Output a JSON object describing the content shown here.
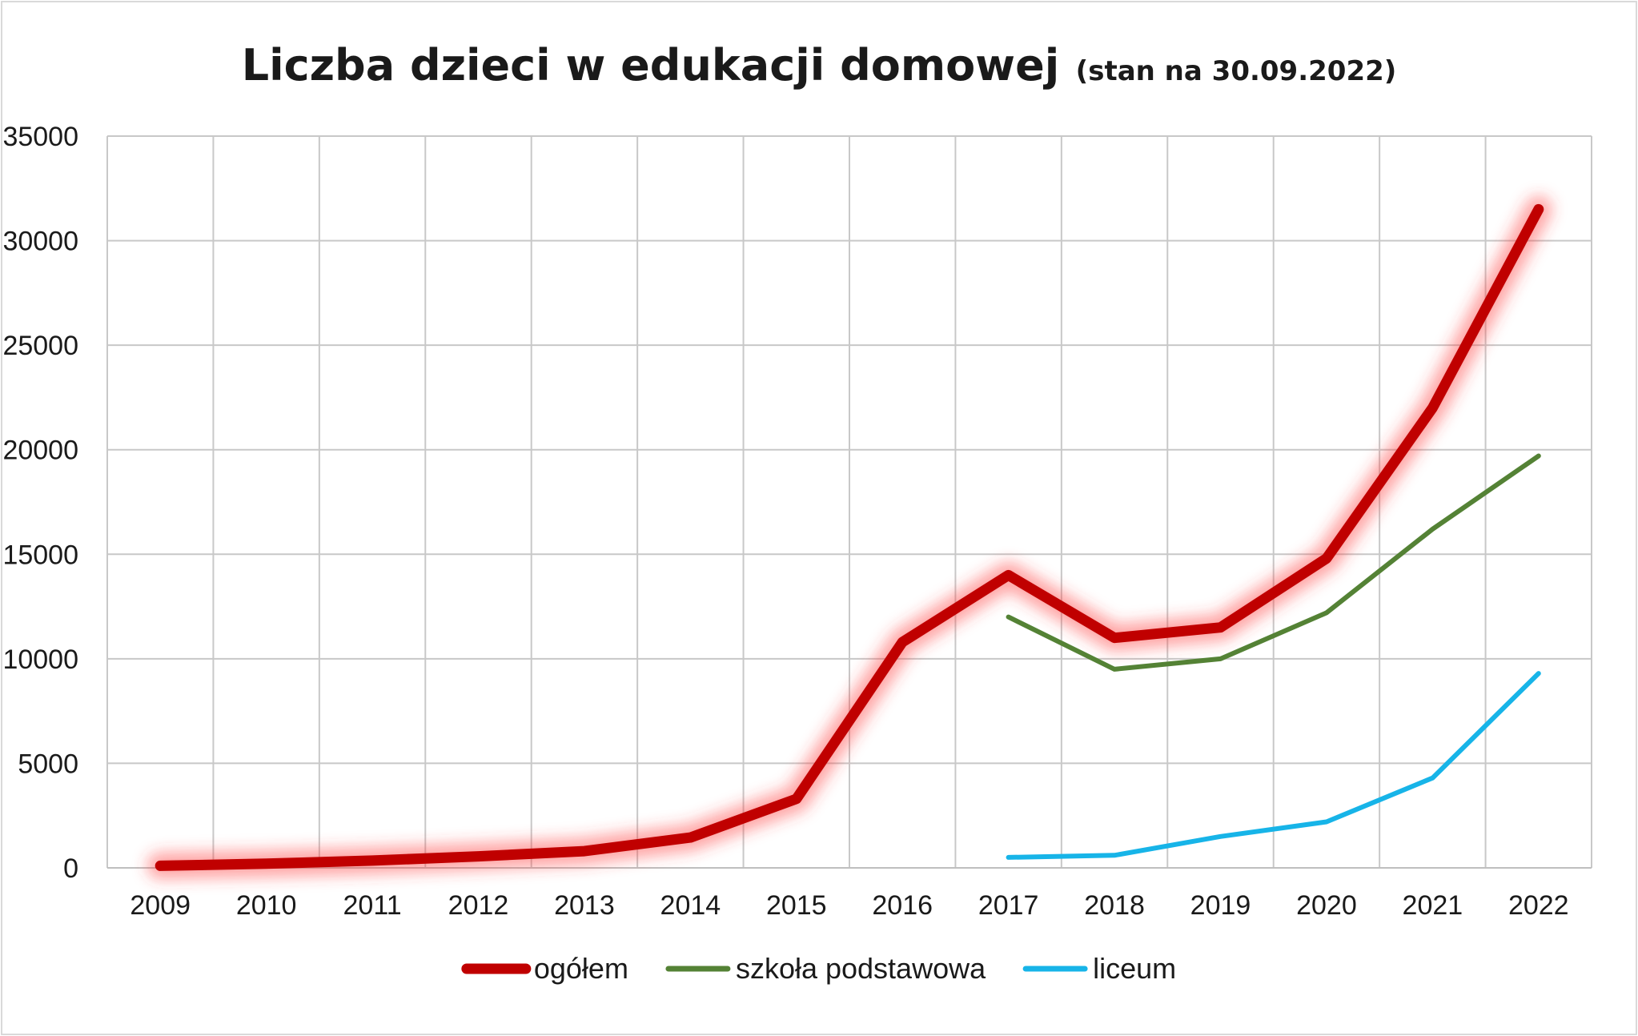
{
  "chart_data": {
    "type": "line",
    "title": "Liczba dzieci w edukacji domowej",
    "subtitle": "(stan na 30.09.2022)",
    "xlabel": "",
    "ylabel": "",
    "categories": [
      "2009",
      "2010",
      "2011",
      "2012",
      "2013",
      "2014",
      "2015",
      "2016",
      "2017",
      "2018",
      "2019",
      "2020",
      "2021",
      "2022"
    ],
    "ylim": [
      0,
      35000
    ],
    "yticks": [
      0,
      5000,
      10000,
      15000,
      20000,
      25000,
      30000,
      35000
    ],
    "grid": true,
    "legend_position": "bottom",
    "series": [
      {
        "name": "ogółem",
        "color": "#c00000",
        "glow": true,
        "values": [
          100,
          200,
          350,
          550,
          800,
          1450,
          3300,
          10800,
          14000,
          11000,
          11500,
          14800,
          22000,
          31500
        ]
      },
      {
        "name": "szkoła podstawowa",
        "color": "#548235",
        "glow": false,
        "values": [
          null,
          null,
          null,
          null,
          null,
          null,
          null,
          null,
          12000,
          9500,
          10000,
          12200,
          16200,
          19700
        ]
      },
      {
        "name": "liceum",
        "color": "#17b4e8",
        "glow": false,
        "values": [
          null,
          null,
          null,
          null,
          null,
          null,
          null,
          null,
          500,
          600,
          1500,
          2200,
          4300,
          9300
        ]
      }
    ]
  }
}
